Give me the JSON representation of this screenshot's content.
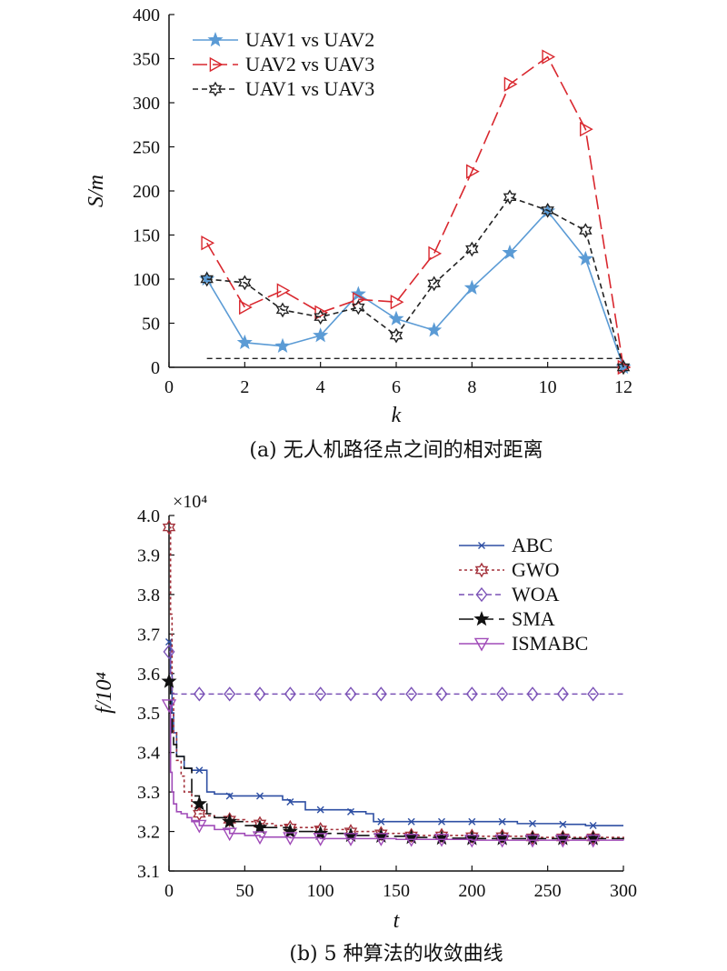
{
  "chart_data": [
    {
      "type": "line",
      "ylabel": "S/m",
      "xlabel": "k",
      "caption": "(a) 无人机路径点之间的相对距离",
      "xlim": [
        0,
        12
      ],
      "ylim": [
        0,
        400
      ],
      "xticks": [
        0,
        2,
        4,
        6,
        8,
        10,
        12
      ],
      "yticks": [
        0,
        50,
        100,
        150,
        200,
        250,
        300,
        350,
        400
      ],
      "legend_position": "top-left",
      "series": [
        {
          "name": "UAV1 vs UAV2",
          "color": "#5b9bd5",
          "marker": "star",
          "dash": "solid",
          "x": [
            1,
            2,
            3,
            4,
            5,
            6,
            7,
            8,
            9,
            10,
            11,
            12
          ],
          "values": [
            100,
            28,
            24,
            36,
            83,
            55,
            42,
            90,
            130,
            177,
            123,
            0
          ]
        },
        {
          "name": "UAV2 vs UAV3",
          "color": "#d9272e",
          "marker": "triangle-right",
          "dash": "longdash",
          "x": [
            1,
            2,
            3,
            4,
            5,
            6,
            7,
            8,
            9,
            10,
            11,
            12
          ],
          "values": [
            141,
            68,
            87,
            62,
            77,
            74,
            129,
            222,
            321,
            352,
            270,
            0
          ]
        },
        {
          "name": "UAV1 vs UAV3",
          "color": "#222222",
          "marker": "hexagram",
          "dash": "dashed",
          "x": [
            1,
            2,
            3,
            4,
            5,
            6,
            7,
            8,
            9,
            10,
            11,
            12
          ],
          "values": [
            100,
            96,
            65,
            57,
            68,
            36,
            95,
            134,
            193,
            178,
            155,
            0
          ]
        }
      ],
      "reference_line": {
        "x": [
          1,
          12
        ],
        "y": 10,
        "color": "#222222",
        "dash": "dashed"
      }
    },
    {
      "type": "line",
      "ylabel": "f/10⁴",
      "xlabel": "t",
      "multiplier": "×10⁴",
      "caption": "(b) 5 种算法的收敛曲线",
      "xlim": [
        0,
        300
      ],
      "ylim": [
        3.1,
        4.0
      ],
      "xticks": [
        0,
        50,
        100,
        150,
        200,
        250,
        300
      ],
      "yticks": [
        3.1,
        3.2,
        3.3,
        3.4,
        3.5,
        3.6,
        3.7,
        3.8,
        3.9,
        4.0
      ],
      "legend_position": "top-right",
      "series": [
        {
          "name": "ABC",
          "color": "#2e4fa3",
          "marker": "x",
          "dash": "solid",
          "step": true,
          "x": [
            0,
            1,
            2,
            3,
            5,
            10,
            15,
            20,
            25,
            30,
            40,
            60,
            75,
            80,
            90,
            100,
            120,
            130,
            135,
            140,
            160,
            180,
            200,
            220,
            230,
            240,
            260,
            275,
            280,
            300
          ],
          "values": [
            3.68,
            3.6,
            3.5,
            3.45,
            3.39,
            3.36,
            3.355,
            3.355,
            3.3,
            3.295,
            3.29,
            3.29,
            3.28,
            3.275,
            3.255,
            3.255,
            3.25,
            3.245,
            3.225,
            3.225,
            3.225,
            3.225,
            3.225,
            3.225,
            3.22,
            3.22,
            3.218,
            3.215,
            3.215,
            3.215
          ],
          "marker_x": [
            0,
            20,
            40,
            60,
            80,
            100,
            120,
            140,
            160,
            180,
            200,
            220,
            240,
            260,
            280
          ]
        },
        {
          "name": "GWO",
          "color": "#a3303a",
          "marker": "hexagram",
          "dash": "dotted",
          "step": true,
          "x": [
            0,
            1,
            2,
            3,
            5,
            8,
            10,
            15,
            20,
            25,
            30,
            40,
            50,
            60,
            70,
            80,
            90,
            100,
            110,
            120,
            130,
            140,
            160,
            180,
            200,
            240,
            300
          ],
          "values": [
            3.97,
            3.75,
            3.55,
            3.45,
            3.38,
            3.34,
            3.3,
            3.26,
            3.245,
            3.24,
            3.235,
            3.23,
            3.225,
            3.22,
            3.215,
            3.21,
            3.21,
            3.205,
            3.205,
            3.2,
            3.2,
            3.195,
            3.19,
            3.19,
            3.188,
            3.185,
            3.183
          ],
          "marker_x": [
            0,
            20,
            40,
            60,
            80,
            100,
            120,
            140,
            160,
            180,
            200,
            220,
            240,
            260,
            280
          ]
        },
        {
          "name": "WOA",
          "color": "#7b52b6",
          "marker": "diamond",
          "dash": "dashed",
          "step": true,
          "x": [
            0,
            1,
            2,
            3,
            300
          ],
          "values": [
            3.655,
            3.6,
            3.555,
            3.548,
            3.548
          ],
          "marker_x": [
            0,
            20,
            40,
            60,
            80,
            100,
            120,
            140,
            160,
            180,
            200,
            220,
            240,
            260,
            280
          ]
        },
        {
          "name": "SMA",
          "color": "#111111",
          "marker": "star",
          "dash": "longdash",
          "step": true,
          "x": [
            0,
            1,
            2,
            3,
            5,
            10,
            15,
            20,
            25,
            30,
            40,
            50,
            60,
            80,
            100,
            120,
            140,
            160,
            180,
            200,
            300
          ],
          "values": [
            3.58,
            3.5,
            3.45,
            3.42,
            3.39,
            3.36,
            3.29,
            3.27,
            3.245,
            3.235,
            3.225,
            3.215,
            3.21,
            3.2,
            3.195,
            3.19,
            3.188,
            3.185,
            3.183,
            3.182,
            3.18
          ],
          "marker_x": [
            0,
            20,
            40,
            60,
            80,
            100,
            120,
            140,
            160,
            180,
            200,
            220,
            240,
            260,
            280
          ]
        },
        {
          "name": "ISMABC",
          "color": "#a04bb8",
          "marker": "triangle-down",
          "dash": "solid",
          "step": true,
          "x": [
            0,
            1,
            2,
            3,
            5,
            8,
            12,
            15,
            20,
            30,
            40,
            50,
            60,
            80,
            100,
            150,
            200,
            300
          ],
          "values": [
            3.52,
            3.35,
            3.3,
            3.27,
            3.25,
            3.245,
            3.235,
            3.225,
            3.215,
            3.205,
            3.195,
            3.19,
            3.186,
            3.184,
            3.182,
            3.18,
            3.178,
            3.177
          ],
          "marker_x": [
            0,
            20,
            40,
            60,
            80,
            100,
            120,
            140,
            160,
            180,
            200,
            220,
            240,
            260,
            280
          ]
        }
      ]
    }
  ]
}
